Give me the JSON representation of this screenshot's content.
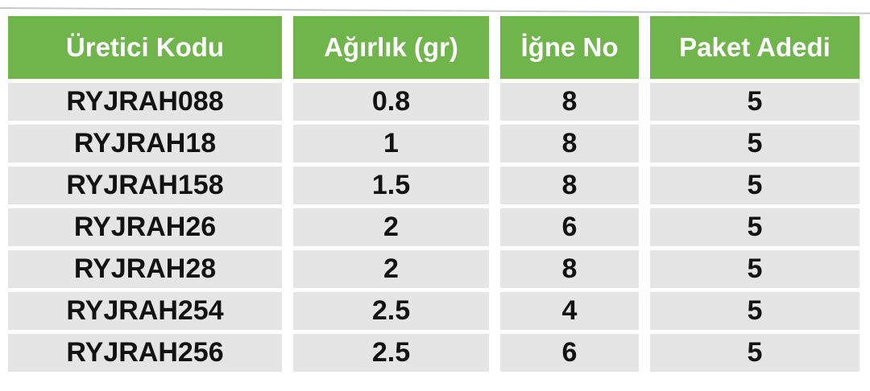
{
  "colors": {
    "page_bg": "#ffffff",
    "hairline": "#c9c9cd",
    "header_bg": "#6fb54b",
    "header_text": "#ffffff",
    "row_bg": "#e5e5e6",
    "body_text": "#121212"
  },
  "chart_data": {
    "type": "table",
    "title": "",
    "columns": [
      "Üretici Kodu",
      "Ağırlık (gr)",
      "İğne No",
      "Paket Adedi"
    ],
    "rows": [
      [
        "RYJRAH088",
        "0.8",
        "8",
        "5"
      ],
      [
        "RYJRAH18",
        "1",
        "8",
        "5"
      ],
      [
        "RYJRAH158",
        "1.5",
        "8",
        "5"
      ],
      [
        "RYJRAH26",
        "2",
        "6",
        "5"
      ],
      [
        "RYJRAH28",
        "2",
        "8",
        "5"
      ],
      [
        "RYJRAH254",
        "2.5",
        "4",
        "5"
      ],
      [
        "RYJRAH256",
        "2.5",
        "6",
        "5"
      ]
    ]
  }
}
